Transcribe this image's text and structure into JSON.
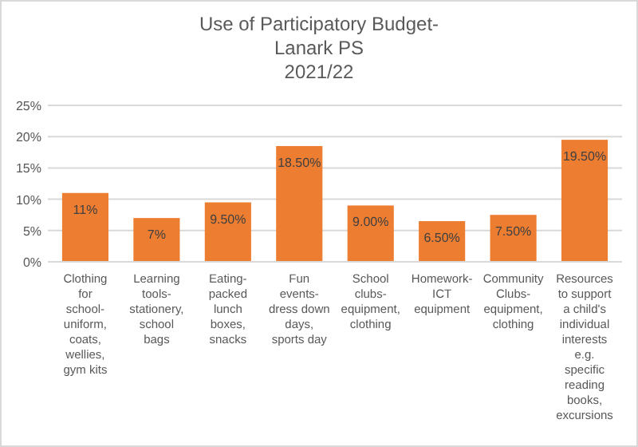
{
  "chart_data": {
    "type": "bar",
    "title": "Use of Participatory Budget-\nLanark PS\n2021/22",
    "categories": [
      "Clothing for school-uniform, coats, wellies, gym kits",
      "Learning tools-stationery, school bags",
      "Eating-packed lunch boxes, snacks",
      "Fun events-dress down days, sports day",
      "School clubs-equipment, clothing",
      "Homework-ICT equipment",
      "Community Clubs-equipment, clothing",
      "Resources to support a child's individual interests e.g. specific reading books, excursions"
    ],
    "values": [
      11,
      7,
      9.5,
      18.5,
      9,
      6.5,
      7.5,
      19.5
    ],
    "value_labels": [
      "11%",
      "7%",
      "9.50%",
      "18.50%",
      "9.00%",
      "6.50%",
      "7.50%",
      "19.50%"
    ],
    "color": "#ed7d31",
    "ylim": [
      0,
      25
    ],
    "yticks": [
      {
        "value": 0,
        "label": "0%"
      },
      {
        "value": 5,
        "label": "5%"
      },
      {
        "value": 10,
        "label": "10%"
      },
      {
        "value": 15,
        "label": "15%"
      },
      {
        "value": 20,
        "label": "20%"
      },
      {
        "value": 25,
        "label": "25%"
      }
    ],
    "grid": "y"
  }
}
